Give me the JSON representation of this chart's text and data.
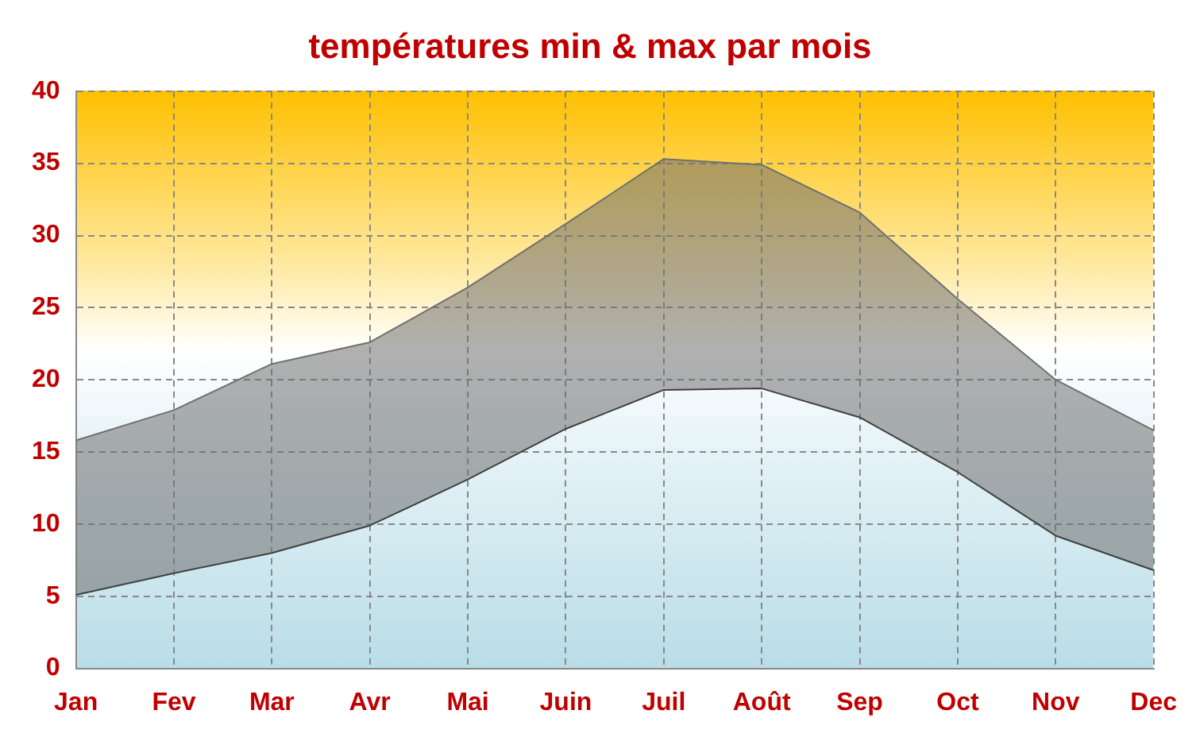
{
  "chart_data": {
    "type": "area",
    "title": "températures min & max par mois",
    "categories": [
      "Jan",
      "Fev",
      "Mar",
      "Avr",
      "Mai",
      "Juin",
      "Juil",
      "Août",
      "Sep",
      "Oct",
      "Nov",
      "Dec"
    ],
    "series": [
      {
        "type": "line",
        "color": "#404040",
        "values": [
          5.1,
          6.6,
          8.0,
          9.9,
          13.1,
          16.6,
          19.3,
          19.4,
          17.4,
          13.6,
          9.2,
          6.8
        ]
      },
      {
        "color": "#707070",
        "values": [
          15.8,
          17.9,
          21.1,
          22.6,
          26.4,
          30.8,
          35.3,
          34.9,
          31.6,
          25.6,
          20.0,
          16.5
        ]
      }
    ],
    "ylim": [
      0,
      40
    ],
    "yticks": [
      0,
      5,
      10,
      15,
      20,
      25,
      30,
      35,
      40
    ],
    "grid": true,
    "legend": false
  }
}
